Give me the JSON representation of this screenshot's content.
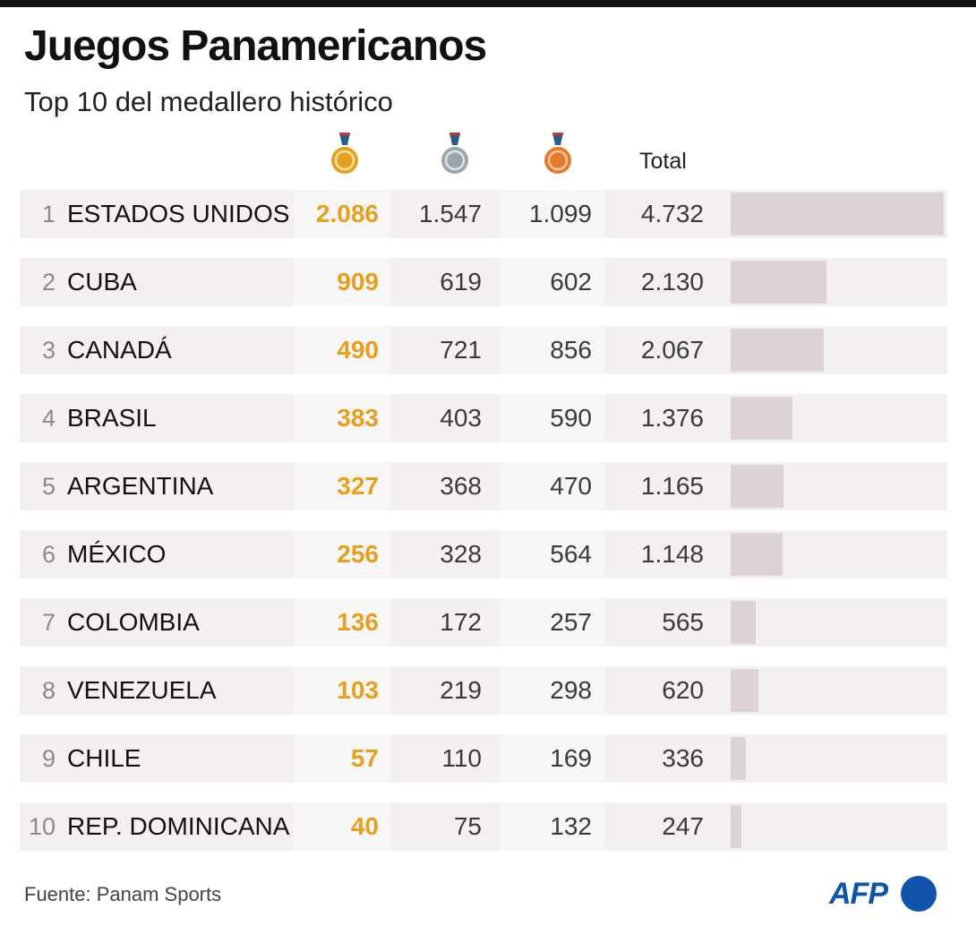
{
  "title": "Juegos Panamericanos",
  "subtitle": "Top 10 del medallero histórico",
  "header": {
    "gold_icon": "gold-medal-icon",
    "silver_icon": "silver-medal-icon",
    "bronze_icon": "bronze-medal-icon",
    "total_label": "Total"
  },
  "colors": {
    "gold": "#e6a020",
    "silver": "#9aa4ab",
    "bronze": "#e37a2c",
    "ribbon": "#2a5c8a",
    "bar": "#ddd3d6",
    "row_bg": "#f4eff1",
    "afp_blue": "#1155aa"
  },
  "chart_data": {
    "type": "table",
    "columns": [
      "",
      "",
      "Total"
    ],
    "bar_max": 4732,
    "rows": [
      {
        "rank": "1",
        "country": "ESTADOS UNIDOS",
        "gold": "2.086",
        "silver": "1.547",
        "bronze": "1.099",
        "total": "4.732",
        "total_value": 4732
      },
      {
        "rank": "2",
        "country": "CUBA",
        "gold": "909",
        "silver": "619",
        "bronze": "602",
        "total": "2.130",
        "total_value": 2130
      },
      {
        "rank": "3",
        "country": "CANADÁ",
        "gold": "490",
        "silver": "721",
        "bronze": "856",
        "total": "2.067",
        "total_value": 2067
      },
      {
        "rank": "4",
        "country": "BRASIL",
        "gold": "383",
        "silver": "403",
        "bronze": "590",
        "total": "1.376",
        "total_value": 1376
      },
      {
        "rank": "5",
        "country": "ARGENTINA",
        "gold": "327",
        "silver": "368",
        "bronze": "470",
        "total": "1.165",
        "total_value": 1165
      },
      {
        "rank": "6",
        "country": "MÉXICO",
        "gold": "256",
        "silver": "328",
        "bronze": "564",
        "total": "1.148",
        "total_value": 1148
      },
      {
        "rank": "7",
        "country": "COLOMBIA",
        "gold": "136",
        "silver": "172",
        "bronze": "257",
        "total": "565",
        "total_value": 565
      },
      {
        "rank": "8",
        "country": "VENEZUELA",
        "gold": "103",
        "silver": "219",
        "bronze": "298",
        "total": "620",
        "total_value": 620
      },
      {
        "rank": "9",
        "country": "CHILE",
        "gold": "57",
        "silver": "110",
        "bronze": "169",
        "total": "336",
        "total_value": 336
      },
      {
        "rank": "10",
        "country": "REP. DOMINICANA",
        "gold": "40",
        "silver": "75",
        "bronze": "132",
        "total": "247",
        "total_value": 247
      }
    ]
  },
  "source": "Fuente: Panam Sports",
  "logo_text": "AFP"
}
